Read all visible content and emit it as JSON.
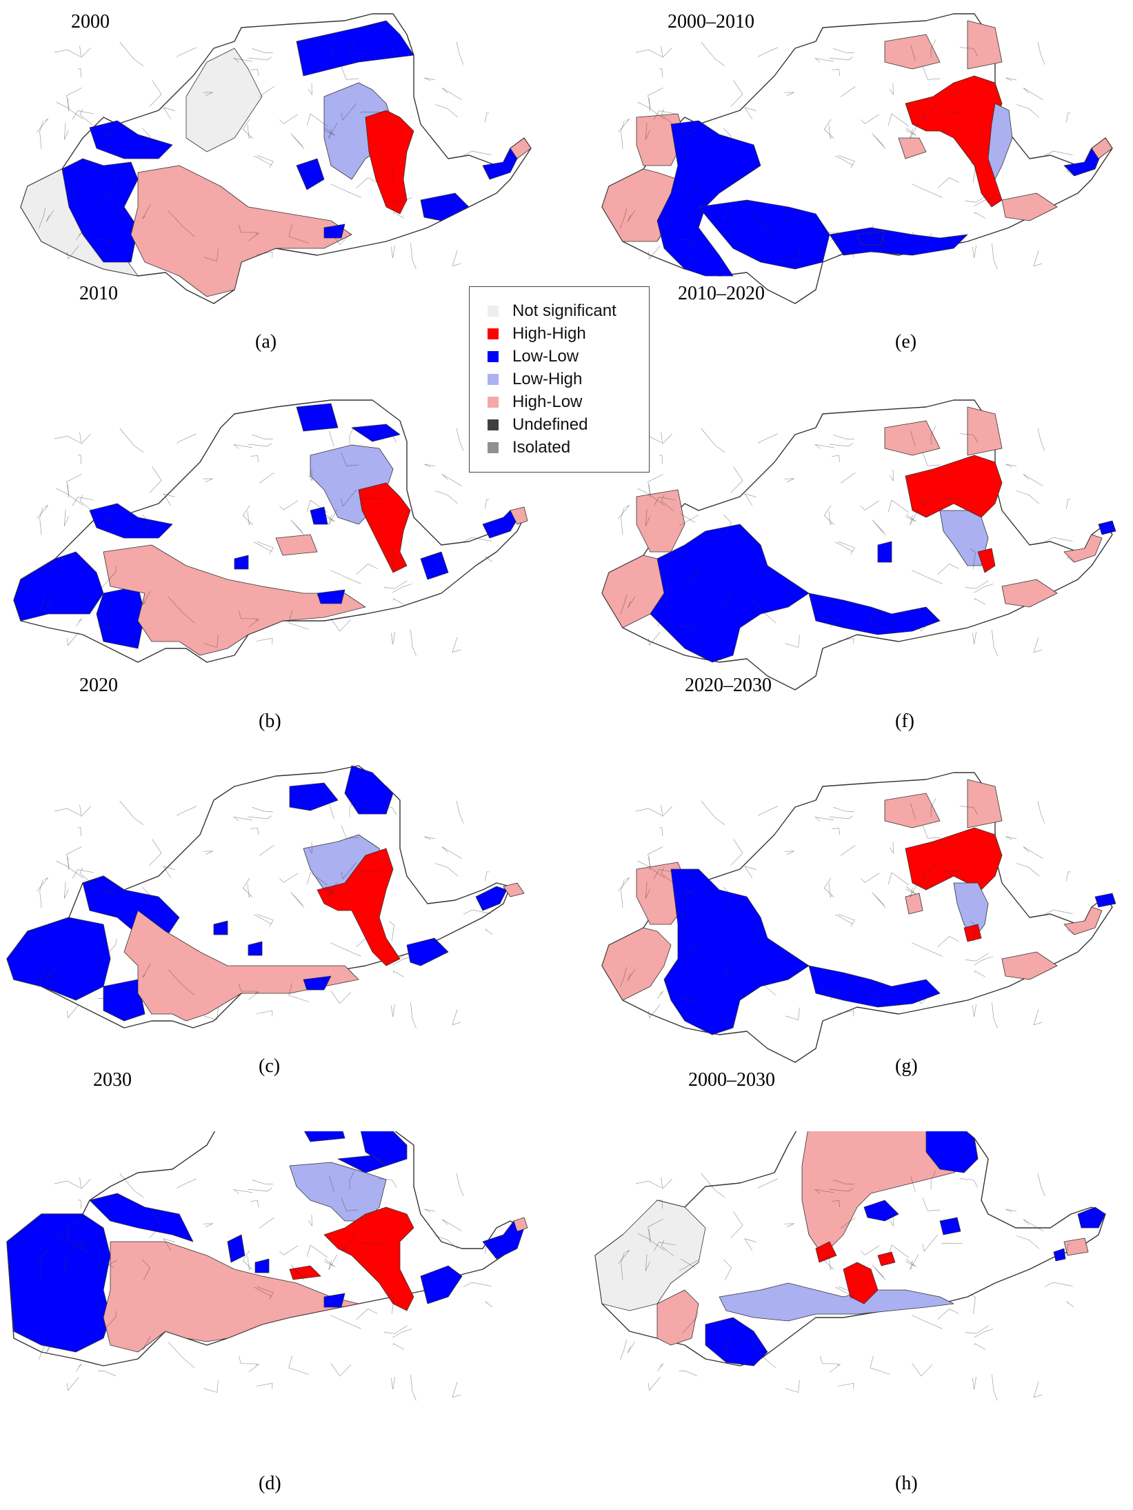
{
  "colors": {
    "not_significant": "#eeeeee",
    "high_high": "#ff0000",
    "low_low": "#0000ff",
    "low_high": "#aab0f0",
    "high_low": "#f4a8a8",
    "undefined": "#404040",
    "isolated": "#909090",
    "boundary": "#333333",
    "neutral_fill": "#ffffff"
  },
  "legend": {
    "items": [
      {
        "label": "Not significant",
        "color": "#eeeeee"
      },
      {
        "label": "High-High",
        "color": "#ff0000"
      },
      {
        "label": "Low-Low",
        "color": "#0000ff"
      },
      {
        "label": "Low-High",
        "color": "#aab0f0"
      },
      {
        "label": "High-Low",
        "color": "#f4a8a8"
      },
      {
        "label": "Undefined",
        "color": "#404040"
      },
      {
        "label": "Isolated",
        "color": "#909090"
      }
    ]
  },
  "panels": [
    {
      "id": "a",
      "title": "2000",
      "caption": "(a)"
    },
    {
      "id": "b",
      "title": "2010",
      "caption": "(b)"
    },
    {
      "id": "c",
      "title": "2020",
      "caption": "(c)"
    },
    {
      "id": "d",
      "title": "2030",
      "caption": "(d)"
    },
    {
      "id": "e",
      "title": "2000–2010",
      "caption": "(e)"
    },
    {
      "id": "f",
      "title": "2010–2020",
      "caption": "(f)"
    },
    {
      "id": "g",
      "title": "2020–2030",
      "caption": "(g)"
    },
    {
      "id": "h",
      "title": "2000–2030",
      "caption": "(h)"
    }
  ]
}
